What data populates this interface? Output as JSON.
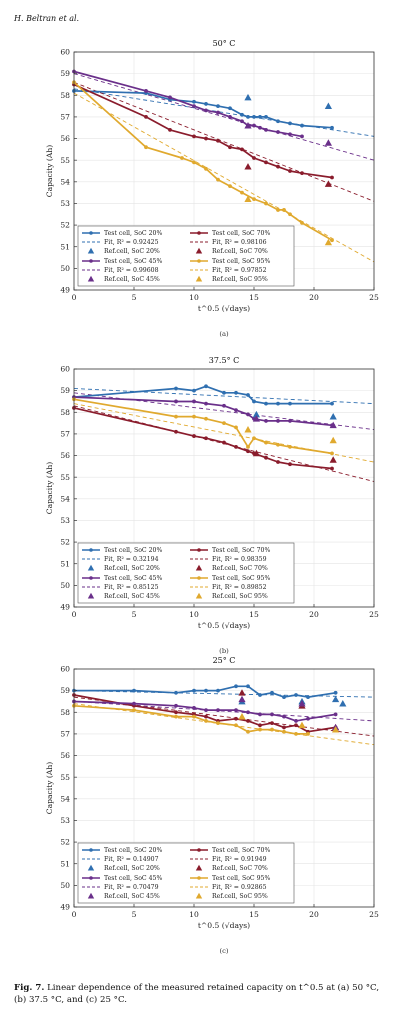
{
  "header": {
    "authors": "H. Beltran et al."
  },
  "caption": {
    "label": "Fig. 7.",
    "text": "Linear dependence of the measured retained capacity on t^0.5 at (a) 50 °C, (b) 37.5 °C, and (c) 25 °C."
  },
  "colors": {
    "soc20": "#2f6fb0",
    "soc70": "#8a1c2c",
    "soc45": "#6a2f8a",
    "soc95": "#e0a92e"
  },
  "chart_data": [
    {
      "type": "line",
      "panel_label": "(a)",
      "title": "50° C",
      "xlabel": "t^0.5 (√days)",
      "ylabel": "Capacity (Ah)",
      "xlim": [
        0,
        25
      ],
      "ylim": [
        49,
        60
      ],
      "xticks": [
        0,
        5,
        10,
        15,
        20,
        25
      ],
      "yticks": [
        49,
        50,
        51,
        52,
        53,
        54,
        55,
        56,
        57,
        58,
        59,
        60
      ],
      "grid": true,
      "legend_position": "lower-left",
      "series": [
        {
          "key": "soc20",
          "name": "Test cell, SoC 20%",
          "fit_label": "Fit, R² = 0.92425",
          "ref_label": "Ref.cell, SoC 20%",
          "x": [
            0,
            6,
            8,
            10,
            11,
            12,
            13,
            14,
            14.5,
            15,
            15.5,
            16,
            17,
            18,
            19,
            21.5
          ],
          "y": [
            58.2,
            58.1,
            57.8,
            57.7,
            57.6,
            57.5,
            57.4,
            57.1,
            57.0,
            57.0,
            57.0,
            57.0,
            56.8,
            56.7,
            56.6,
            56.5
          ],
          "fit": [
            [
              0,
              58.3
            ],
            [
              25,
              56.1
            ]
          ],
          "ref": [
            [
              14.5,
              57.9
            ],
            [
              21.2,
              57.5
            ]
          ]
        },
        {
          "key": "soc70",
          "name": "Test cell, SoC 70%",
          "fit_label": "Fit, R² = 0.98106",
          "ref_label": "Ref.cell, SoC 70%",
          "x": [
            0,
            6,
            8,
            10,
            11,
            12,
            13,
            14,
            15,
            16,
            17,
            18,
            19,
            21.5
          ],
          "y": [
            58.5,
            57.0,
            56.4,
            56.1,
            56.0,
            55.9,
            55.6,
            55.5,
            55.1,
            54.9,
            54.7,
            54.5,
            54.4,
            54.2
          ],
          "fit": [
            [
              0,
              58.6
            ],
            [
              25,
              53.1
            ]
          ],
          "ref": [
            [
              14.5,
              54.7
            ],
            [
              21.2,
              53.9
            ]
          ]
        },
        {
          "key": "soc45",
          "name": "Test cell, SoC 45%",
          "fit_label": "Fit, R² = 0.99608",
          "ref_label": "Ref.cell, SoC 45%",
          "x": [
            0,
            6,
            8,
            10,
            11,
            12,
            13,
            14,
            14.5,
            15,
            15.5,
            16,
            17,
            18,
            19
          ],
          "y": [
            59.1,
            58.2,
            57.9,
            57.5,
            57.3,
            57.2,
            57.0,
            56.8,
            56.6,
            56.6,
            56.5,
            56.4,
            56.3,
            56.2,
            56.1
          ],
          "fit": [
            [
              0,
              59.0
            ],
            [
              25,
              55.0
            ]
          ],
          "ref": [
            [
              14.5,
              56.6
            ],
            [
              21.2,
              55.8
            ]
          ]
        },
        {
          "key": "soc95",
          "name": "Test cell, SoC 95%",
          "fit_label": "Fit, R² = 0.97852",
          "ref_label": "Ref.cell, SoC 95%",
          "x": [
            0,
            6,
            9,
            10,
            11,
            12,
            13,
            14,
            15,
            16,
            17,
            17.5,
            18,
            19,
            21.5
          ],
          "y": [
            58.6,
            55.6,
            55.1,
            54.9,
            54.6,
            54.1,
            53.8,
            53.5,
            53.2,
            53.0,
            52.7,
            52.7,
            52.5,
            52.1,
            51.3
          ],
          "fit": [
            [
              0,
              58.1
            ],
            [
              25,
              50.3
            ]
          ],
          "ref": [
            [
              14.5,
              53.2
            ],
            [
              21.2,
              51.2
            ]
          ]
        }
      ],
      "fit_r2": {
        "soc20": 0.92425,
        "soc70": 0.98106,
        "soc45": 0.99608,
        "soc95": 0.97852
      }
    },
    {
      "type": "line",
      "panel_label": "(b)",
      "title": "37.5° C",
      "xlabel": "t^0.5 (√days)",
      "ylabel": "Capacity (Ah)",
      "xlim": [
        0,
        25
      ],
      "ylim": [
        49,
        60
      ],
      "xticks": [
        0,
        5,
        10,
        15,
        20,
        25
      ],
      "yticks": [
        49,
        50,
        51,
        52,
        53,
        54,
        55,
        56,
        57,
        58,
        59,
        60
      ],
      "grid": true,
      "legend_position": "lower-left",
      "series": [
        {
          "key": "soc20",
          "name": "Test cell, SoC 20%",
          "fit_label": "Fit, R² = 0.32194",
          "ref_label": "Ref.cell, SoC 20%",
          "x": [
            0,
            8.5,
            10,
            11,
            12.5,
            13.5,
            14.5,
            15,
            16,
            17,
            18,
            21.5
          ],
          "y": [
            58.7,
            59.1,
            59.0,
            59.2,
            58.9,
            58.9,
            58.8,
            58.5,
            58.4,
            58.4,
            58.4,
            58.4
          ],
          "fit": [
            [
              0,
              59.1
            ],
            [
              25,
              58.4
            ]
          ],
          "ref": [
            [
              15.2,
              57.9
            ],
            [
              21.6,
              57.8
            ]
          ]
        },
        {
          "key": "soc70",
          "name": "Test cell, SoC 70%",
          "fit_label": "Fit, R² = 0.98359",
          "ref_label": "Ref.cell, SoC 70%",
          "x": [
            0,
            8.5,
            10,
            11,
            12.5,
            13.5,
            14.5,
            15,
            16,
            17,
            18,
            21.5
          ],
          "y": [
            58.2,
            57.1,
            56.9,
            56.8,
            56.6,
            56.4,
            56.2,
            56.1,
            55.9,
            55.7,
            55.6,
            55.4
          ],
          "fit": [
            [
              0,
              58.3
            ],
            [
              25,
              54.8
            ]
          ],
          "ref": [
            [
              15.2,
              56.1
            ],
            [
              21.6,
              55.8
            ]
          ]
        },
        {
          "key": "soc45",
          "name": "Test cell, SoC 45%",
          "fit_label": "Fit, R² = 0.85125",
          "ref_label": "Ref.cell, SoC 45%",
          "x": [
            0,
            8.5,
            10,
            11,
            12.5,
            13.5,
            14.5,
            15,
            16,
            17,
            18,
            21.5
          ],
          "y": [
            58.7,
            58.5,
            58.5,
            58.4,
            58.3,
            58.1,
            57.9,
            57.7,
            57.6,
            57.6,
            57.6,
            57.4
          ],
          "fit": [
            [
              0,
              58.9
            ],
            [
              25,
              57.2
            ]
          ],
          "ref": [
            [
              15.2,
              57.7
            ],
            [
              21.6,
              57.4
            ]
          ]
        },
        {
          "key": "soc95",
          "name": "Test cell, SoC 95%",
          "fit_label": "Fit, R² = 0.89852",
          "ref_label": "Ref.cell, SoC 95%",
          "x": [
            0,
            8.5,
            10,
            11,
            12.5,
            13.5,
            14.5,
            15,
            16,
            17,
            18,
            21.5
          ],
          "y": [
            58.6,
            57.8,
            57.8,
            57.7,
            57.5,
            57.3,
            56.4,
            56.8,
            56.6,
            56.5,
            56.4,
            56.1
          ],
          "fit": [
            [
              0,
              58.4
            ],
            [
              25,
              55.7
            ]
          ],
          "ref": [
            [
              14.5,
              57.2
            ],
            [
              21.6,
              56.7
            ]
          ]
        }
      ],
      "fit_r2": {
        "soc20": 0.32194,
        "soc70": 0.98359,
        "soc45": 0.85125,
        "soc95": 0.89852
      }
    },
    {
      "type": "line",
      "panel_label": "(c)",
      "title": "25° C",
      "xlabel": "t^0.5 (√days)",
      "ylabel": "Capacity (Ah)",
      "xlim": [
        0,
        25
      ],
      "ylim": [
        49,
        60
      ],
      "xticks": [
        0,
        5,
        10,
        15,
        20,
        25
      ],
      "yticks": [
        49,
        50,
        51,
        52,
        53,
        54,
        55,
        56,
        57,
        58,
        59,
        60
      ],
      "grid": true,
      "legend_position": "lower-left",
      "series": [
        {
          "key": "soc20",
          "name": "Test cell, SoC 20%",
          "fit_label": "Fit, R² = 0.14907",
          "ref_label": "Ref.cell, SoC 20%",
          "x": [
            0,
            5,
            8.5,
            10,
            11,
            12,
            13.5,
            14.5,
            15.5,
            16.5,
            17.5,
            18.5,
            19.5,
            21.8
          ],
          "y": [
            59.0,
            59.0,
            58.9,
            59.0,
            59.0,
            59.0,
            59.2,
            59.2,
            58.8,
            58.9,
            58.7,
            58.8,
            58.7,
            58.9
          ],
          "fit": [
            [
              0,
              59.0
            ],
            [
              25,
              58.7
            ]
          ],
          "ref": [
            [
              14,
              58.5
            ],
            [
              19,
              58.5
            ],
            [
              21.8,
              58.6
            ],
            [
              22.4,
              58.4
            ]
          ]
        },
        {
          "key": "soc70",
          "name": "Test cell, SoC 70%",
          "fit_label": "Fit, R² = 0.91949",
          "ref_label": "Ref.cell, SoC 70%",
          "x": [
            0,
            5,
            8.5,
            10,
            11,
            12,
            13.5,
            14.5,
            15.5,
            16.5,
            17.5,
            18.5,
            19.5,
            21.8
          ],
          "y": [
            58.8,
            58.3,
            58.0,
            57.9,
            57.8,
            57.6,
            57.7,
            57.6,
            57.4,
            57.5,
            57.3,
            57.4,
            57.1,
            57.3
          ],
          "fit": [
            [
              0,
              58.7
            ],
            [
              25,
              56.9
            ]
          ],
          "ref": [
            [
              14,
              58.9
            ],
            [
              19,
              58.3
            ],
            [
              21.8,
              57.3
            ]
          ]
        },
        {
          "key": "soc45",
          "name": "Test cell, SoC 45%",
          "fit_label": "Fit, R² = 0.70479",
          "ref_label": "Ref.cell, SoC 45%",
          "x": [
            0,
            5,
            8.5,
            10,
            11,
            12,
            13.5,
            14.5,
            15.5,
            16.5,
            17.5,
            18.5,
            19.5,
            21.8
          ],
          "y": [
            58.5,
            58.4,
            58.3,
            58.2,
            58.1,
            58.1,
            58.1,
            58.0,
            57.9,
            57.9,
            57.8,
            57.6,
            57.7,
            57.9
          ],
          "fit": [
            [
              0,
              58.5
            ],
            [
              25,
              57.6
            ]
          ],
          "ref": [
            [
              14,
              58.6
            ],
            [
              19,
              58.4
            ],
            [
              21.8,
              57.3
            ]
          ]
        },
        {
          "key": "soc95",
          "name": "Test cell, SoC 95%",
          "fit_label": "Fit, R² = 0.92865",
          "ref_label": "Ref.cell, SoC 95%",
          "x": [
            0,
            5,
            8.5,
            10,
            11,
            12,
            13.5,
            14.5,
            15.5,
            16.5,
            17.5,
            18.5,
            19.5
          ],
          "y": [
            58.3,
            58.1,
            57.8,
            57.8,
            57.6,
            57.5,
            57.4,
            57.1,
            57.2,
            57.2,
            57.1,
            57.0,
            57.0
          ],
          "fit": [
            [
              0,
              58.4
            ],
            [
              25,
              56.5
            ]
          ],
          "ref": [
            [
              14,
              57.8
            ],
            [
              19,
              57.4
            ],
            [
              21.8,
              57.2
            ]
          ]
        }
      ],
      "fit_r2": {
        "soc20": 0.14907,
        "soc70": 0.91949,
        "soc45": 0.70479,
        "soc95": 0.92865
      }
    }
  ]
}
